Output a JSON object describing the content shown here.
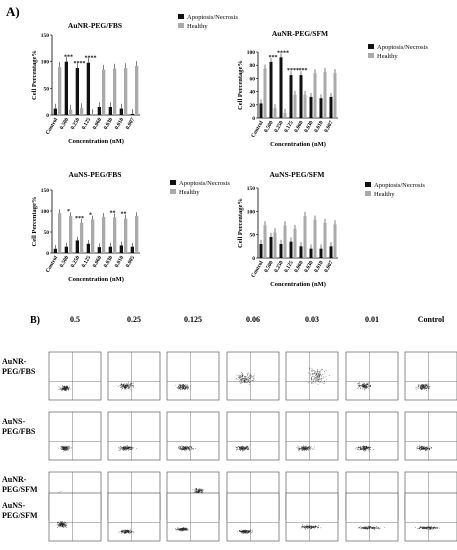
{
  "panel_a_label": "A)",
  "panel_b_label": "B)",
  "legend_labels": [
    "Apoptosis/Necrosis",
    "Healthy"
  ],
  "colors": {
    "apoptosis": "#111111",
    "healthy": "#aaaaaa",
    "flow_dots": "#222222"
  },
  "chart_data": [
    {
      "type": "bar",
      "title": "AuNR-PEG/FBS",
      "xlabel": "Concentration (nM)",
      "ylabel": "Cell Percentage%",
      "ylim": [
        0,
        150
      ],
      "yticks": [
        "0",
        "50",
        "100",
        "150"
      ],
      "categories": [
        "Control",
        "0.500",
        "0.250",
        "0.125",
        "0.060",
        "0.030",
        "0.010",
        "0.007"
      ],
      "series": [
        {
          "name": "Apoptosis/Necrosis",
          "values": [
            12,
            100,
            88,
            98,
            15,
            15,
            12,
            2
          ]
        },
        {
          "name": "Healthy",
          "values": [
            90,
            10,
            13,
            2,
            85,
            87,
            88,
            92
          ]
        }
      ],
      "annotations": [
        "",
        "***",
        "****",
        "****",
        "",
        "",
        "",
        ""
      ]
    },
    {
      "type": "bar",
      "title": "AuNR-PEG/SFM",
      "xlabel": "Concentration (nM)",
      "ylabel": "Cell Percentage%",
      "ylim": [
        0,
        100
      ],
      "yticks": [
        "0",
        "20",
        "40",
        "60",
        "80",
        "100"
      ],
      "categories": [
        "Control",
        "0.500",
        "0.250",
        "0.125",
        "0.060",
        "0.030",
        "0.010",
        "0.007"
      ],
      "series": [
        {
          "name": "Apoptosis/Necrosis",
          "values": [
            22,
            85,
            92,
            65,
            65,
            32,
            30,
            32
          ]
        },
        {
          "name": "Healthy",
          "values": [
            75,
            15,
            8,
            35,
            35,
            68,
            70,
            68
          ]
        }
      ],
      "annotations": [
        "",
        "***",
        "****",
        "****",
        "***",
        "",
        "",
        ""
      ]
    },
    {
      "type": "bar",
      "title": "AuNS-PEG/FBS",
      "xlabel": "Concentration (nM)",
      "ylabel": "Cell Percentage%",
      "ylim": [
        0,
        150
      ],
      "yticks": [
        "0",
        "50",
        "100",
        "150"
      ],
      "categories": [
        "Control",
        "0.500",
        "0.250",
        "0.125",
        "0.060",
        "0.030",
        "0.010",
        "0.005"
      ],
      "series": [
        {
          "name": "Apoptosis/Necrosis",
          "values": [
            10,
            15,
            30,
            22,
            14,
            15,
            18,
            15
          ]
        },
        {
          "name": "Healthy",
          "values": [
            95,
            88,
            72,
            80,
            86,
            85,
            82,
            88
          ]
        }
      ],
      "annotations": [
        "",
        "*",
        "***",
        "*",
        "",
        "**",
        "**",
        ""
      ]
    },
    {
      "type": "bar",
      "title": "AuNS-PEG/SFM",
      "xlabel": "Concentration (nM)",
      "ylabel": "Cell Percentage%",
      "ylim": [
        0,
        150
      ],
      "yticks": [
        "0",
        "50",
        "100",
        "150"
      ],
      "categories": [
        "Control",
        "0.500",
        "0.250",
        "0.125",
        "0.060",
        "0.030",
        "0.010",
        "0.007"
      ],
      "series": [
        {
          "name": "Apoptosis/Necrosis",
          "values": [
            30,
            45,
            30,
            35,
            25,
            20,
            20,
            25
          ]
        },
        {
          "name": "Healthy",
          "values": [
            70,
            55,
            70,
            62,
            90,
            82,
            75,
            72
          ]
        }
      ],
      "annotations": [
        "",
        "",
        "",
        "",
        "",
        "",
        "",
        ""
      ]
    }
  ],
  "flow_grid": {
    "column_headers": [
      "0.5",
      "0.25",
      "0.125",
      "0.06",
      "0.03",
      "0.01",
      "Control"
    ],
    "row_labels": [
      [
        "AuNR-",
        "PEG/FBS"
      ],
      [
        "AuNS-",
        "PEG/FBS"
      ],
      [
        "AuNR-",
        "PEG/SFM"
      ],
      [
        "AuNS-",
        "PEG/SFM"
      ]
    ]
  }
}
